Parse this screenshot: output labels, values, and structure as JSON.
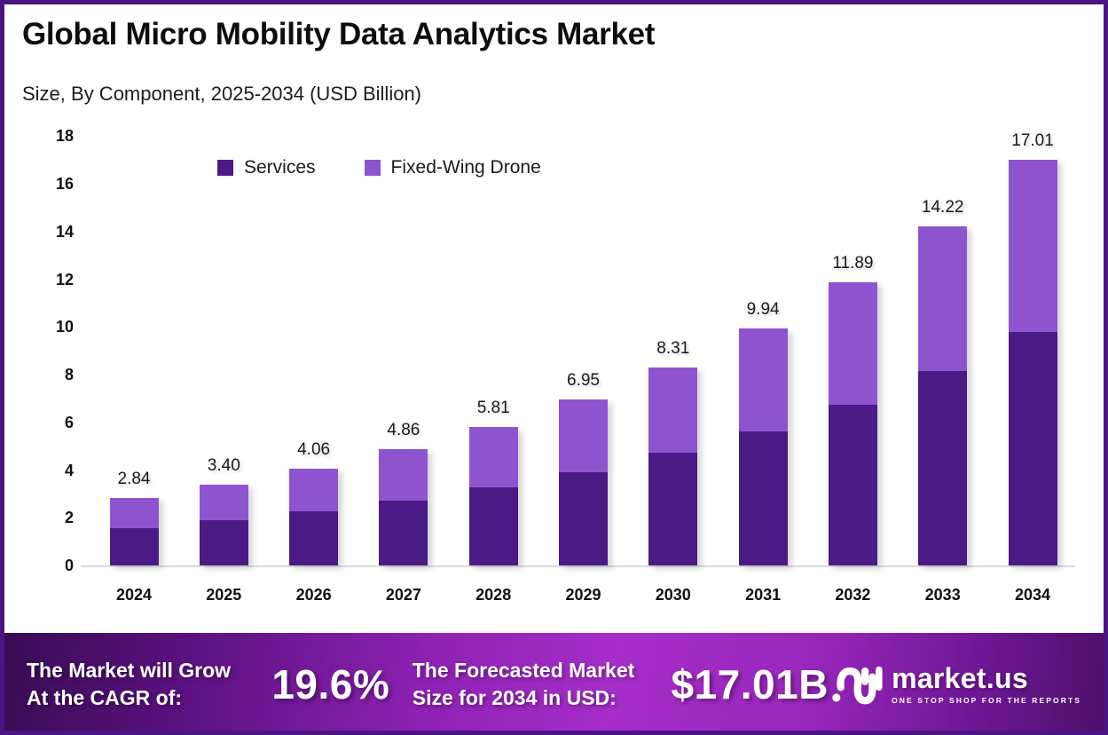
{
  "header": {
    "title": "Global Micro Mobility Data Analytics Market",
    "subtitle": "Size, By Component, 2025-2034 (USD Billion)"
  },
  "chart_data": {
    "type": "bar",
    "stacked": true,
    "title": "Global Micro Mobility Data Analytics Market",
    "subtitle": "Size, By Component, 2025-2034 (USD Billion)",
    "categories": [
      "2024",
      "2025",
      "2026",
      "2027",
      "2028",
      "2029",
      "2030",
      "2031",
      "2032",
      "2033",
      "2034"
    ],
    "series": [
      {
        "name": "Services",
        "color": "#4A1B85",
        "values": [
          1.55,
          1.9,
          2.28,
          2.73,
          3.29,
          3.91,
          4.73,
          5.63,
          6.75,
          8.15,
          9.8
        ]
      },
      {
        "name": "Fixed-Wing Drone",
        "color": "#8E54CF",
        "values": [
          1.29,
          1.5,
          1.78,
          2.13,
          2.52,
          3.04,
          3.58,
          4.31,
          5.14,
          6.07,
          7.21
        ]
      }
    ],
    "totals": [
      2.84,
      3.4,
      4.06,
      4.86,
      5.81,
      6.95,
      8.31,
      9.94,
      11.89,
      14.22,
      17.01
    ],
    "total_labels": [
      "2.84",
      "3.40",
      "4.06",
      "4.86",
      "5.81",
      "6.95",
      "8.31",
      "9.94",
      "11.89",
      "14.22",
      "17.01"
    ],
    "xlabel": "",
    "ylabel": "",
    "ylim": [
      0,
      18
    ],
    "yticks": [
      0,
      2,
      4,
      6,
      8,
      10,
      12,
      14,
      16,
      18
    ],
    "grid": false,
    "legend_position": "top-inside-left"
  },
  "banner": {
    "cagr_line1": "The Market will Grow",
    "cagr_line2": "At the CAGR of:",
    "cagr_value": "19.6%",
    "forecast_line1": "The Forecasted Market",
    "forecast_line2": "Size for 2034 in USD:",
    "forecast_value": "$17.01B",
    "brand": "market.us",
    "tagline": "ONE STOP SHOP FOR THE REPORTS"
  },
  "colors": {
    "page_border": "#4A1583",
    "services_bar": "#4A1B85",
    "drone_bar": "#8E54CF",
    "banner_dark": "#380B52",
    "banner_bright": "#A62DC9",
    "axis_line": "#dcdcdc",
    "text": "#111111"
  }
}
